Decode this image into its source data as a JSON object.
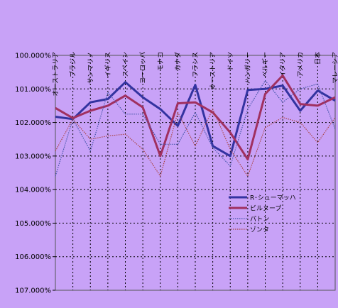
{
  "chart_data": {
    "type": "line",
    "categories": [
      "オーストラリア",
      "ブラジル",
      "サンマリノ",
      "イギリス",
      "スペイン",
      "ヨーロッパ",
      "モナコ",
      "カナダ",
      "フランス",
      "オーストリア",
      "ドイツ",
      "ハンガリー",
      "ベルギー",
      "イタリア",
      "アメリカ",
      "日本",
      "マレーシア"
    ],
    "y_axis": {
      "reversed": true,
      "min": 1.0,
      "max": 1.07,
      "ticks": [
        "100.000%",
        "101.000%",
        "102.000%",
        "103.000%",
        "104.000%",
        "105.000%",
        "106.000%",
        "107.000%"
      ]
    },
    "grid": true,
    "legend_position": "right",
    "series": [
      {
        "name": "R･シューマッハ",
        "color": "#3333a0",
        "style": "thick",
        "values": [
          1.0183,
          1.019,
          1.014,
          1.013,
          1.008,
          1.0125,
          1.016,
          1.021,
          1.0088,
          1.027,
          1.03,
          1.0103,
          1.01,
          1.009,
          1.0165,
          1.0105,
          1.0135
        ]
      },
      {
        "name": "ビルヌーブ",
        "color": "#a03060",
        "style": "thick",
        "values": [
          1.0157,
          1.0187,
          1.0165,
          1.015,
          1.012,
          1.0155,
          1.03,
          1.0143,
          1.014,
          1.017,
          1.023,
          1.031,
          1.0115,
          1.006,
          1.0145,
          1.015,
          1.0125
        ]
      },
      {
        "name": "パトン",
        "color": "#4455aa",
        "style": "dotted",
        "values": [
          1.036,
          1.019,
          1.0285,
          1.011,
          1.0175,
          1.0175,
          1.0265,
          1.0265,
          1.017,
          1.0275,
          1.033,
          1.016,
          1.0075,
          1.014,
          1.01,
          1.0085,
          1.022
        ]
      },
      {
        "name": "ゾンタ",
        "color": "#aa4444",
        "style": "dotted",
        "values": [
          1.0285,
          1.019,
          1.025,
          1.024,
          1.0235,
          1.028,
          1.036,
          1.017,
          1.027,
          1.016,
          1.028,
          1.036,
          1.0215,
          1.0185,
          1.02,
          1.026,
          1.0185
        ]
      }
    ]
  }
}
